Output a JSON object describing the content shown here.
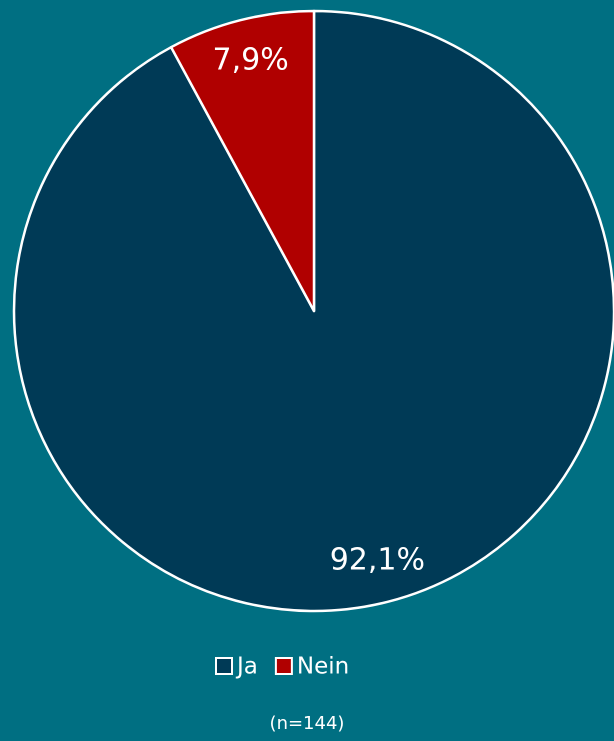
{
  "chart_data": {
    "type": "pie",
    "categories": [
      "Ja",
      "Nein"
    ],
    "values": [
      92.1,
      7.9
    ],
    "value_labels": [
      "92,1%",
      "7,9%"
    ],
    "colors": [
      "#003a56",
      "#b00000"
    ],
    "note": "(n=144)"
  }
}
